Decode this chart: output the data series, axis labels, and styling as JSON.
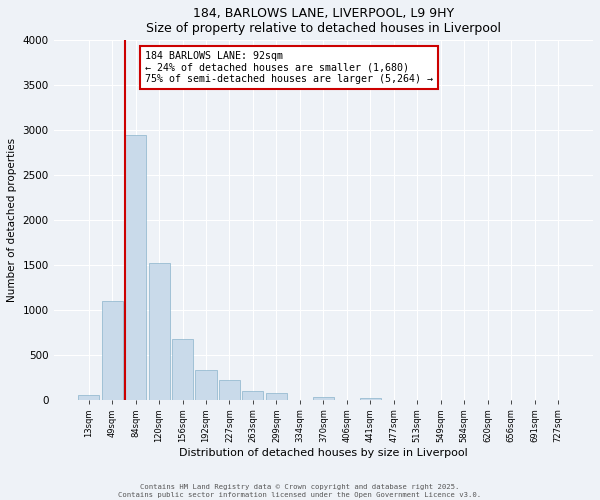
{
  "title1": "184, BARLOWS LANE, LIVERPOOL, L9 9HY",
  "title2": "Size of property relative to detached houses in Liverpool",
  "xlabel": "Distribution of detached houses by size in Liverpool",
  "ylabel": "Number of detached properties",
  "bar_labels": [
    "13sqm",
    "49sqm",
    "84sqm",
    "120sqm",
    "156sqm",
    "192sqm",
    "227sqm",
    "263sqm",
    "299sqm",
    "334sqm",
    "370sqm",
    "406sqm",
    "441sqm",
    "477sqm",
    "513sqm",
    "549sqm",
    "584sqm",
    "620sqm",
    "656sqm",
    "691sqm",
    "727sqm"
  ],
  "bar_values": [
    50,
    1100,
    2950,
    1525,
    670,
    330,
    215,
    95,
    70,
    0,
    25,
    0,
    15,
    0,
    0,
    0,
    0,
    0,
    0,
    0,
    0
  ],
  "bar_color": "#c9daea",
  "bar_edge_color": "#8ab4cc",
  "vline_color": "#cc0000",
  "ylim": [
    0,
    4000
  ],
  "yticks": [
    0,
    500,
    1000,
    1500,
    2000,
    2500,
    3000,
    3500,
    4000
  ],
  "annotation_title": "184 BARLOWS LANE: 92sqm",
  "annotation_line1": "← 24% of detached houses are smaller (1,680)",
  "annotation_line2": "75% of semi-detached houses are larger (5,264) →",
  "annotation_box_color": "#cc0000",
  "footer1": "Contains HM Land Registry data © Crown copyright and database right 2025.",
  "footer2": "Contains public sector information licensed under the Open Government Licence v3.0.",
  "bg_color": "#eef2f7",
  "plot_bg_color": "#eef2f7",
  "grid_color": "#ffffff"
}
